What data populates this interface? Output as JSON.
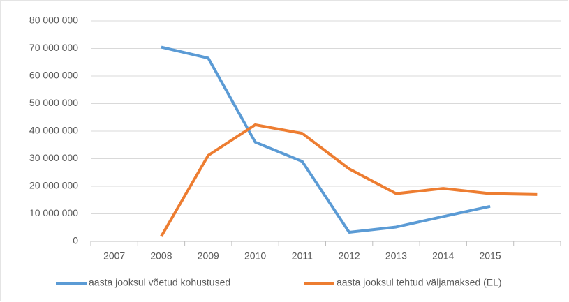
{
  "chart_data": {
    "type": "line",
    "categories": [
      "2007",
      "2008",
      "2009",
      "2010",
      "2011",
      "2012",
      "2013",
      "2014",
      "2015",
      null
    ],
    "series": [
      {
        "name": "aasta jooksul võetud kohustused",
        "color": "#5b9bd5",
        "values": [
          null,
          70500000,
          66500000,
          36000000,
          29000000,
          3300000,
          5200000,
          9000000,
          12700000,
          null
        ]
      },
      {
        "name": "aasta jooksul tehtud väljamaksed (EL)",
        "color": "#ed7d31",
        "values": [
          null,
          1800000,
          31200000,
          42300000,
          39200000,
          26300000,
          17300000,
          19200000,
          17300000,
          17000000
        ]
      }
    ],
    "ylim": [
      0,
      80000000
    ],
    "yticks": [
      0,
      {
        "value": 10000000,
        "label": "10 000 000"
      },
      {
        "value": 20000000,
        "label": "20 000 000"
      },
      {
        "value": 30000000,
        "label": "30 000 000"
      },
      {
        "value": 40000000,
        "label": "40 000 000"
      },
      {
        "value": 50000000,
        "label": "50 000 000"
      },
      {
        "value": 60000000,
        "label": "60 000 000"
      },
      {
        "value": 70000000,
        "label": "70 000 000"
      },
      {
        "value": 80000000,
        "label": "80 000 000"
      }
    ],
    "grid": true,
    "legend": "bottom"
  }
}
